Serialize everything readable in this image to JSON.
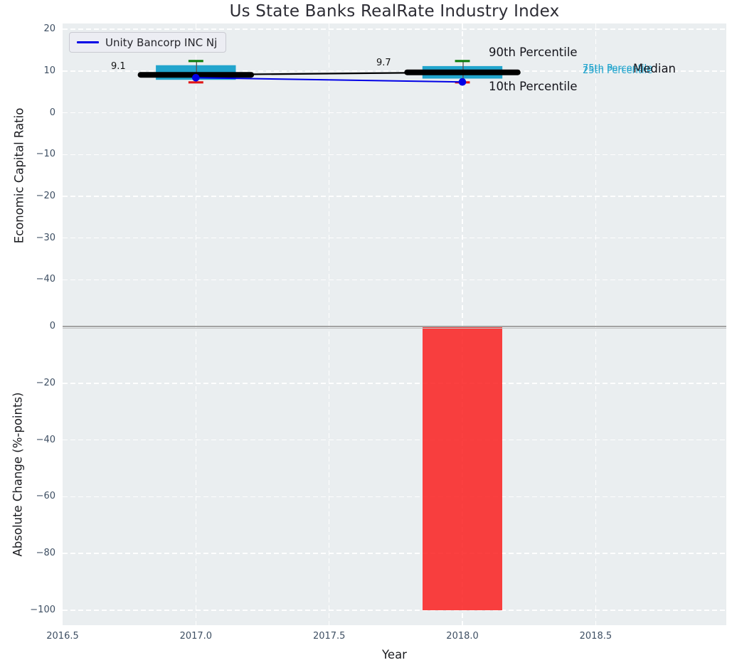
{
  "title": "Us State Banks RealRate Industry Index",
  "legend": {
    "label": "Unity Bancorp INC Nj"
  },
  "axes": {
    "xlabel": "Year",
    "xlim": [
      2016.5,
      2018.99
    ],
    "xticks": [
      2016.5,
      2017.0,
      2017.5,
      2018.0,
      2018.5
    ],
    "xtick_labels": [
      "2016.5",
      "2017.0",
      "2017.5",
      "2018.0",
      "2018.5"
    ],
    "grid_x": [
      2017.0,
      2017.5,
      2018.0,
      2018.5
    ],
    "top": {
      "ylabel": "Economic Capital Ratio",
      "ylim": [
        -50.5,
        21.4
      ],
      "yticks": [
        20,
        10,
        0,
        -10,
        -20,
        -30,
        -40
      ],
      "ytick_labels": [
        "20",
        "10",
        "0",
        "−10",
        "−20",
        "−30",
        "−40"
      ]
    },
    "bottom": {
      "ylabel": "Absolute Change (%-points)",
      "ylim": [
        -105.3,
        1.0
      ],
      "yticks": [
        0,
        -20,
        -40,
        -60,
        -80,
        -100
      ],
      "ytick_labels": [
        "0",
        "−20",
        "−40",
        "−60",
        "−80",
        "−100"
      ],
      "grid_y": [
        -20,
        -40,
        -60,
        -80,
        -100
      ]
    }
  },
  "annotations": {
    "p90_label": "90th Percentile",
    "p10_label": "10th Percentile",
    "p75_label": "75th Percentile",
    "p25_label": "25th Percentile",
    "median_label": "Median",
    "value_2017": "9.1",
    "value_2018": "9.7"
  },
  "colors": {
    "company_line": "#0000e6",
    "median_line": "#000000",
    "box_fill": "#22a5cd",
    "p90_cap": "#0f7f0f",
    "p10_cap": "#e01717",
    "whisker": "#555555",
    "bar_fill": "#fa3c3c",
    "plot_bg": "#eaeef0",
    "grid": "#ffffff",
    "zero_line": "#a2a2a2",
    "tick_text": "#3e4f63",
    "annotation_cyan": "#1ba2cc"
  },
  "chart_data": [
    {
      "type": "boxplot",
      "title": "Us State Banks RealRate Industry Index",
      "xlabel": "Year",
      "ylabel": "Economic Capital Ratio",
      "x": [
        2017,
        2018
      ],
      "series": [
        {
          "name": "Unity Bancorp INC Nj",
          "type": "line",
          "values": [
            8.4,
            7.4
          ]
        },
        {
          "name": "Median",
          "type": "line",
          "values": [
            9.1,
            9.7
          ]
        }
      ],
      "boxes": [
        {
          "x": 2017,
          "p90": 12.4,
          "p75": 11.4,
          "median": 9.1,
          "p25": 7.9,
          "p10": 7.3
        },
        {
          "x": 2018,
          "p90": 12.4,
          "p75": 11.2,
          "median": 9.7,
          "p25": 8.2,
          "p10": 7.3
        }
      ],
      "median_value_labels": [
        "9.1",
        "9.7"
      ],
      "box_width": 0.3,
      "median_marker_width": 0.415,
      "cap_width": 0.056,
      "ylim": [
        -50.5,
        21.4
      ],
      "grid": true,
      "legend_position": "upper left"
    },
    {
      "type": "bar",
      "ylabel": "Absolute Change (%-points)",
      "x": [
        2018
      ],
      "values": [
        -100
      ],
      "bar_width": 0.3,
      "ylim": [
        -105.3,
        1.0
      ],
      "grid": true
    }
  ]
}
